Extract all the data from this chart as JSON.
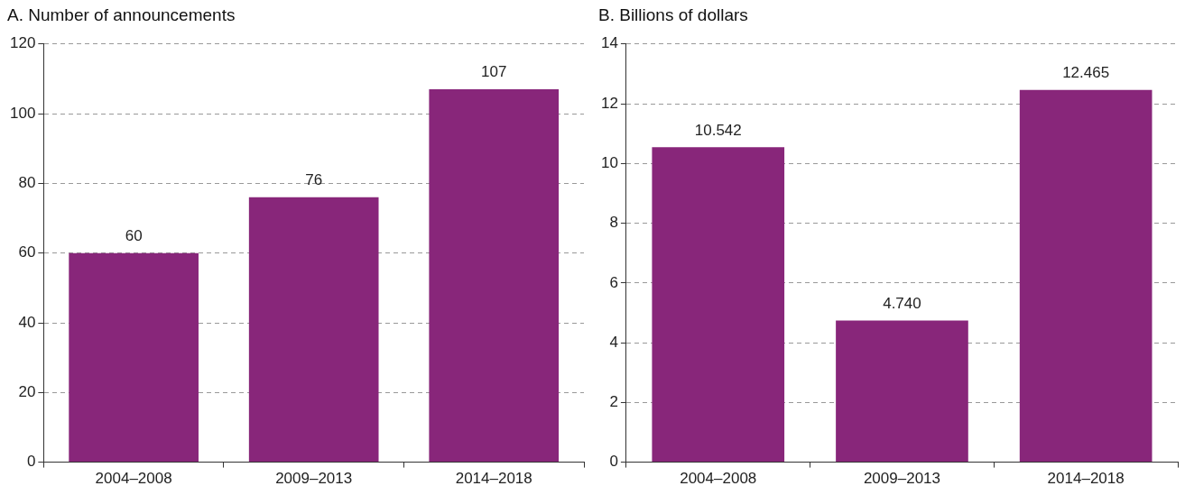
{
  "chart_data": [
    {
      "type": "bar",
      "title": "A. Number of announcements",
      "categories": [
        "2004–2008",
        "2009–2013",
        "2014–2018"
      ],
      "values": [
        60,
        76,
        107
      ],
      "value_labels": [
        "60",
        "76",
        "107"
      ],
      "color": "#88267a",
      "ylim": [
        0,
        120
      ],
      "yticks": [
        0,
        20,
        40,
        60,
        80,
        100,
        120
      ],
      "grid": "y",
      "legend": false
    },
    {
      "type": "bar",
      "title": "B. Billions of dollars",
      "categories": [
        "2004–2008",
        "2009–2013",
        "2014–2018"
      ],
      "values": [
        10.542,
        4.74,
        12.465
      ],
      "value_labels": [
        "10.542",
        "4.740",
        "12.465"
      ],
      "color": "#88267a",
      "ylim": [
        0,
        14
      ],
      "yticks": [
        0,
        2,
        4,
        6,
        8,
        10,
        12,
        14
      ],
      "grid": "y",
      "legend": false
    }
  ]
}
